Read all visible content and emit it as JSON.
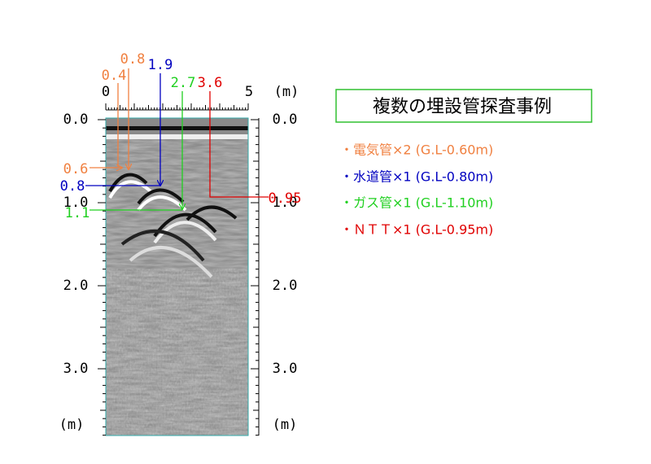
{
  "top_axis": {
    "labels": [
      "0",
      "5"
    ],
    "unit": "(m)"
  },
  "pipe_positions": [
    "0.4",
    "0.8",
    "1.9",
    "2.7",
    "3.6"
  ],
  "depth_axis_left": {
    "labels": [
      "0.0",
      "1.0",
      "2.0",
      "3.0"
    ],
    "unit": "(m)"
  },
  "depth_axis_right": {
    "labels": [
      "0.0",
      "1.0",
      "2.0",
      "3.0"
    ],
    "unit": "(m)"
  },
  "pipe_depths": [
    "0.6",
    "0.8",
    "1.1",
    "0.95"
  ],
  "title": "複数の埋設管探査事例",
  "legend": [
    "・電気管×2 (G.L-0.60m)",
    "・水道管×1 (G.L-0.80m)",
    "・ガス管×1 (G.L-1.10m)",
    "・ＮＴＴ×1 (G.L-0.95m)"
  ]
}
